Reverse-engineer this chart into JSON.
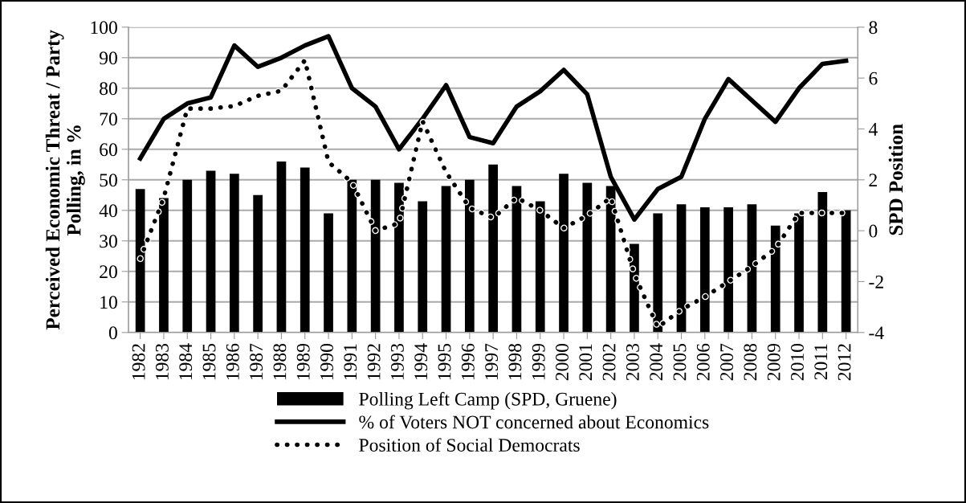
{
  "chart_data": {
    "type": "bar",
    "ylabel": "Perceived Economic Threat / Party Polling, in %",
    "y2label": "SPD Position",
    "categories": [
      "1982",
      "1983",
      "1984",
      "1985",
      "1986",
      "1987",
      "1988",
      "1989",
      "1990",
      "1991",
      "1992",
      "1993",
      "1994",
      "1995",
      "1996",
      "1997",
      "1998",
      "1999",
      "2000",
      "2001",
      "2002",
      "2003",
      "2004",
      "2005",
      "2006",
      "2007",
      "2008",
      "2009",
      "2010",
      "2011",
      "2012"
    ],
    "series": [
      {
        "name": "Polling Left Camp (SPD, Gruene)",
        "color": "#000000",
        "values": [
          47,
          44,
          50,
          53,
          52,
          45,
          56,
          54,
          39,
          50,
          50,
          49,
          43,
          48,
          50,
          55,
          48,
          43,
          52,
          49,
          48,
          29,
          39,
          42,
          41,
          41,
          42,
          35,
          39,
          46,
          40
        ]
      },
      {
        "name": "% of Voters NOT concerned about Economics",
        "type": "line",
        "line_style": "solid",
        "color": "#000000",
        "values": [
          57,
          70,
          75,
          77,
          94,
          87,
          90,
          94,
          97,
          80,
          74,
          60,
          70,
          81,
          64,
          62,
          74,
          79,
          86,
          78,
          51,
          37,
          47,
          51,
          70,
          83,
          76,
          69,
          80,
          88,
          89
        ]
      },
      {
        "name": "Position of Social Democrats",
        "type": "line",
        "line_style": "dotted",
        "axis": "y2",
        "color": "#000000",
        "values": [
          -1.1,
          1.3,
          4.8,
          4.8,
          4.9,
          5.3,
          5.5,
          6.7,
          2.7,
          1.9,
          0.0,
          0.3,
          4.3,
          2.3,
          0.9,
          0.5,
          1.3,
          0.8,
          0.1,
          0.6,
          1.3,
          -1.7,
          -3.8,
          -3.1,
          -2.6,
          -2.0,
          -1.4,
          -0.7,
          0.7,
          0.7,
          0.7
        ]
      }
    ],
    "ylim": [
      0,
      100
    ],
    "yticks": [
      0,
      10,
      20,
      30,
      40,
      50,
      60,
      70,
      80,
      90,
      100
    ],
    "y2lim": [
      -4,
      8
    ],
    "y2ticks": [
      -4,
      -2,
      0,
      2,
      4,
      6,
      8
    ],
    "grid": "y",
    "legend": "bottom",
    "marker": "none"
  }
}
